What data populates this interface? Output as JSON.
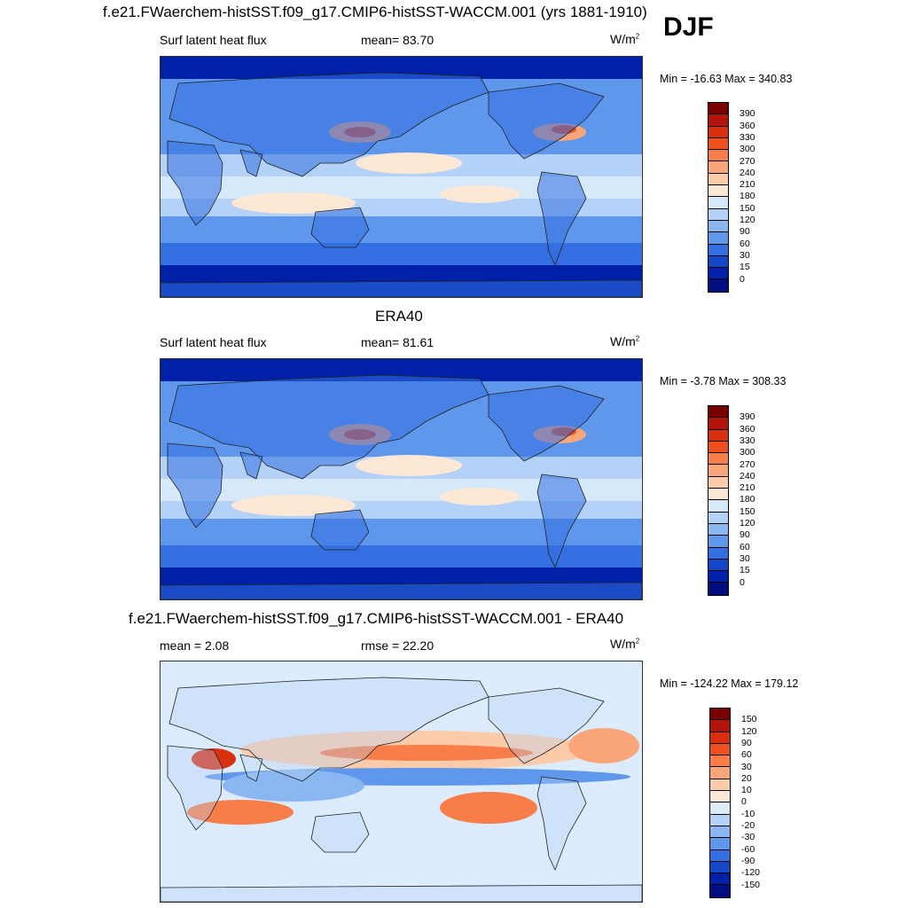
{
  "top_title": "f.e21.FWaerchem-histSST.f09_g17.CMIP6-histSST-WACCM.001 (yrs 1881-1910)",
  "season": "DJF",
  "panels": [
    {
      "title": "",
      "left": "Surf latent heat flux",
      "center": "mean=  83.70",
      "units_base": "W/m",
      "units_exp": "2",
      "minmax": "Min = -16.63 Max = 340.83"
    },
    {
      "title": "ERA40",
      "left": "Surf latent heat flux",
      "center": "mean=  81.61",
      "units_base": "W/m",
      "units_exp": "2",
      "minmax": "Min =  -3.78 Max = 308.33"
    },
    {
      "title": "f.e21.FWaerchem-histSST.f09_g17.CMIP6-histSST-WACCM.001 - ERA40",
      "left": "mean =   2.08",
      "center": "rmse =  22.20",
      "units_base": "W/m",
      "units_exp": "2",
      "minmax": "Min = -124.22 Max = 179.12"
    }
  ],
  "chart_data": [
    {
      "type": "heatmap",
      "title": "f.e21.FWaerchem-histSST.f09_g17.CMIP6-histSST-WACCM.001 (yrs 1881-1910)",
      "variable": "Surf latent heat flux",
      "mean": 83.7,
      "min": -16.63,
      "max": 340.83,
      "units": "W/m2",
      "colorbar_levels": [
        "390",
        "360",
        "330",
        "300",
        "270",
        "240",
        "210",
        "180",
        "150",
        "120",
        "90",
        "60",
        "30",
        "15",
        "0"
      ],
      "colorbar_colors": [
        "#7a0000",
        "#b2140a",
        "#d93010",
        "#ef5020",
        "#f87d48",
        "#fba678",
        "#fccbaa",
        "#fde8d6",
        "#d6e9fb",
        "#b4d2f7",
        "#8ab7f2",
        "#5f97ec",
        "#336fe0",
        "#1447c8",
        "#0020a8",
        "#000e80"
      ]
    },
    {
      "type": "heatmap",
      "title": "ERA40",
      "variable": "Surf latent heat flux",
      "mean": 81.61,
      "min": -3.78,
      "max": 308.33,
      "units": "W/m2",
      "colorbar_levels": [
        "390",
        "360",
        "330",
        "300",
        "270",
        "240",
        "210",
        "180",
        "150",
        "120",
        "90",
        "60",
        "30",
        "15",
        "0"
      ],
      "colorbar_colors": [
        "#7a0000",
        "#b2140a",
        "#d93010",
        "#ef5020",
        "#f87d48",
        "#fba678",
        "#fccbaa",
        "#fde8d6",
        "#d6e9fb",
        "#b4d2f7",
        "#8ab7f2",
        "#5f97ec",
        "#336fe0",
        "#1447c8",
        "#0020a8",
        "#000e80"
      ]
    },
    {
      "type": "heatmap",
      "title": "f.e21.FWaerchem-histSST.f09_g17.CMIP6-histSST-WACCM.001 - ERA40",
      "mean": 2.08,
      "rmse": 22.2,
      "min": -124.22,
      "max": 179.12,
      "units": "W/m2",
      "colorbar_levels": [
        "150",
        "120",
        "90",
        "60",
        "30",
        "20",
        "10",
        "0",
        "-10",
        "-20",
        "-30",
        "-60",
        "-90",
        "-120",
        "-150"
      ],
      "colorbar_colors": [
        "#7a0000",
        "#b2140a",
        "#d93010",
        "#ef5020",
        "#f87d48",
        "#fba678",
        "#fccbaa",
        "#fde8d6",
        "#dcecfc",
        "#b4d2f7",
        "#8ab7f2",
        "#5f97ec",
        "#336fe0",
        "#1447c8",
        "#0020a8",
        "#000e80"
      ]
    }
  ]
}
